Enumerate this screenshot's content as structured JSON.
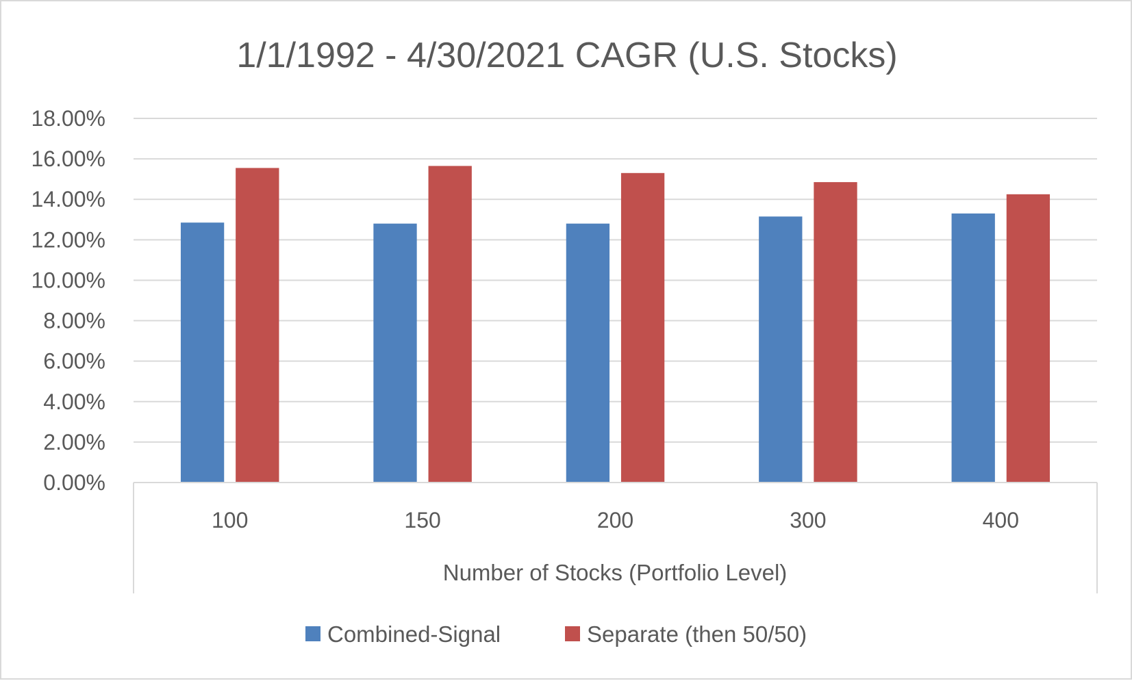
{
  "chart_data": {
    "type": "bar",
    "title": "1/1/1992 - 4/30/2021 CAGR (U.S. Stocks)",
    "xlabel": "Number of Stocks (Portfolio Level)",
    "ylabel": "",
    "categories": [
      "100",
      "150",
      "200",
      "300",
      "400"
    ],
    "series": [
      {
        "name": "Combined-Signal",
        "values": [
          12.85,
          12.8,
          12.8,
          13.15,
          13.3
        ],
        "color": "#4f81bd"
      },
      {
        "name": "Separate (then 50/50)",
        "values": [
          15.55,
          15.65,
          15.3,
          14.85,
          14.25
        ],
        "color": "#c0504d"
      }
    ],
    "ylim": [
      0,
      18
    ],
    "yticks": [
      0,
      2,
      4,
      6,
      8,
      10,
      12,
      14,
      16,
      18
    ],
    "ytick_labels": [
      "0.00%",
      "2.00%",
      "4.00%",
      "6.00%",
      "8.00%",
      "10.00%",
      "12.00%",
      "14.00%",
      "16.00%",
      "18.00%"
    ],
    "grid": true,
    "legend_position": "bottom"
  }
}
